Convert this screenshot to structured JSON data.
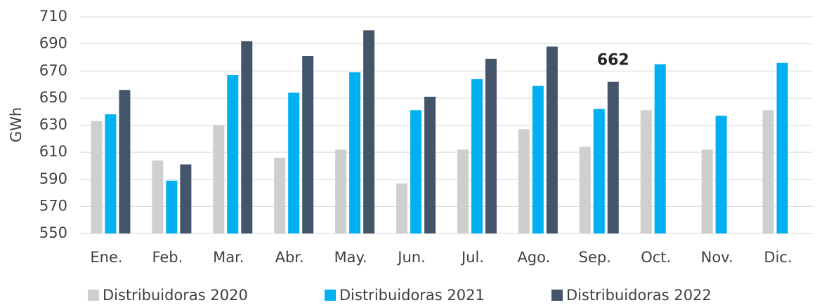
{
  "chart_data": {
    "type": "bar",
    "y_label": "GWh",
    "categories": [
      "Ene.",
      "Feb.",
      "Mar.",
      "Abr.",
      "May.",
      "Jun.",
      "Jul.",
      "Ago.",
      "Sep.",
      "Oct.",
      "Nov.",
      "Dic."
    ],
    "series": [
      {
        "name": "Distribuidoras 2020",
        "color": "#d0cfcf",
        "values": [
          633,
          604,
          630,
          606,
          612,
          587,
          612,
          627,
          614,
          641,
          612,
          641
        ]
      },
      {
        "name": "Distribuidoras 2021",
        "color": "#00b0f0",
        "values": [
          638,
          589,
          667,
          654,
          669,
          641,
          664,
          659,
          642,
          675,
          637,
          676
        ]
      },
      {
        "name": "Distribuidoras 2022",
        "color": "#44546a",
        "values": [
          656,
          601,
          692,
          681,
          700,
          651,
          679,
          688,
          662,
          null,
          null,
          null
        ],
        "value_labels": [
          null,
          null,
          null,
          null,
          null,
          null,
          null,
          null,
          "662",
          null,
          null,
          null
        ]
      }
    ],
    "ylim": [
      550,
      710
    ],
    "yticks": [
      550,
      570,
      590,
      610,
      630,
      650,
      670,
      690,
      710
    ],
    "grid": true,
    "legend": "bottom"
  }
}
